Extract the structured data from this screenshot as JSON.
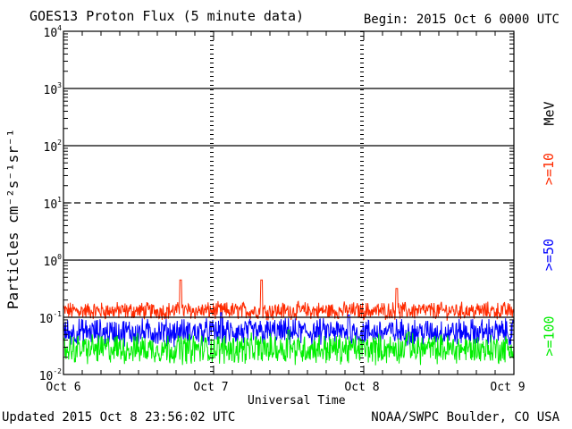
{
  "header": {
    "title": "GOES13 Proton Flux (5 minute data)",
    "begin": "Begin: 2015 Oct 6 0000 UTC"
  },
  "footer": {
    "updated": "Updated 2015 Oct  8 23:56:02 UTC",
    "credit": "NOAA/SWPC Boulder, CO USA"
  },
  "chart_data": {
    "type": "line",
    "title": "GOES13 Proton Flux (5 minute data)",
    "xlabel": "Universal Time",
    "ylabel": "Particles cm⁻²s⁻¹sr⁻¹",
    "y_scale": "log",
    "ylim": [
      0.01,
      10000
    ],
    "xlim": [
      0,
      3
    ],
    "x_ticks": [
      {
        "label": "Oct 6",
        "value": 0
      },
      {
        "label": "Oct 7",
        "value": 1
      },
      {
        "label": "Oct 8",
        "value": 2
      },
      {
        "label": "Oct 9",
        "value": 3
      }
    ],
    "y_ticks": [
      {
        "base": "10",
        "exp": "4",
        "value": 10000
      },
      {
        "base": "10",
        "exp": "3",
        "value": 1000
      },
      {
        "base": "10",
        "exp": "2",
        "value": 100
      },
      {
        "base": "10",
        "exp": "1",
        "value": 10
      },
      {
        "base": "10",
        "exp": "0",
        "value": 1
      },
      {
        "base": "10",
        "exp": "-1",
        "value": 0.1
      },
      {
        "base": "10",
        "exp": "-2",
        "value": 0.01
      }
    ],
    "threshold_lines": [
      {
        "value": 1000,
        "style": "solid"
      },
      {
        "value": 100,
        "style": "solid"
      },
      {
        "value": 10,
        "style": "dashed"
      },
      {
        "value": 1,
        "style": "solid"
      },
      {
        "value": 0.1,
        "style": "solid"
      }
    ],
    "legend_unit": "MeV",
    "series": [
      {
        "name": ">=10",
        "color": "#ff2a00",
        "center": 0.13,
        "spread": 0.13,
        "peaks": [
          [
            0.78,
            0.45
          ],
          [
            1.32,
            0.45
          ],
          [
            2.22,
            0.32
          ]
        ]
      },
      {
        "name": ">=50",
        "color": "#0000ff",
        "center": 0.055,
        "spread": 0.2,
        "peaks": [
          [
            1.05,
            0.12
          ],
          [
            1.9,
            0.11
          ]
        ]
      },
      {
        "name": ">=100",
        "color": "#00ee00",
        "center": 0.028,
        "spread": 0.22,
        "peaks": [
          [
            1.5,
            0.06
          ],
          [
            2.3,
            0.055
          ]
        ]
      }
    ],
    "n_points_per_series": 864,
    "grid": false,
    "legend_placement": "right, vertical"
  }
}
